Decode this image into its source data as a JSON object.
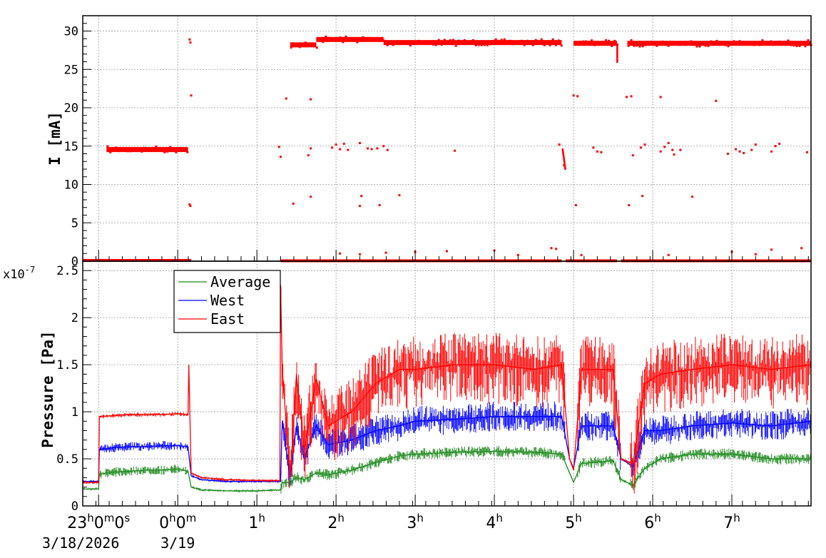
{
  "chart_data": [
    {
      "type": "scatter",
      "panel": "top",
      "title": "",
      "ylabel": "I [mA]",
      "xlabel": "",
      "ylim": [
        0,
        32
      ],
      "yticks": [
        0,
        5,
        10,
        15,
        20,
        25,
        30
      ],
      "xlim_hours": [
        -1.2,
        8.0
      ],
      "grid": true,
      "series": [
        {
          "color": "#ff0000",
          "segments": [
            {
              "x": [
                -1.2,
                0.17
              ],
              "y": 0.05
            },
            {
              "x": [
                -0.9,
                0.13
              ],
              "y": 14.55
            },
            {
              "x": [
                1.42,
                1.75
              ],
              "y": 28.2
            },
            {
              "x": [
                1.75,
                2.6
              ],
              "y": 28.9
            },
            {
              "x": [
                2.6,
                4.85
              ],
              "y": 28.5
            },
            {
              "x": [
                5.0,
                5.55
              ],
              "y": 28.4
            },
            {
              "x": [
                5.68,
                8.0
              ],
              "y": 28.4
            }
          ],
          "points": [
            [
              0.15,
              28.9
            ],
            [
              0.16,
              28.5
            ],
            [
              0.17,
              21.6
            ],
            [
              0.15,
              7.4
            ],
            [
              0.16,
              7.2
            ],
            [
              1.37,
              21.2
            ],
            [
              1.28,
              14.9
            ],
            [
              1.3,
              13.6
            ],
            [
              1.46,
              7.5
            ],
            [
              1.68,
              21.1
            ],
            [
              1.68,
              14.7
            ],
            [
              1.65,
              13.8
            ],
            [
              1.68,
              8.4
            ],
            [
              1.95,
              14.8
            ],
            [
              2.0,
              15.2
            ],
            [
              2.05,
              14.6
            ],
            [
              2.1,
              15.3
            ],
            [
              2.15,
              14.5
            ],
            [
              2.3,
              15.4
            ],
            [
              2.4,
              14.7
            ],
            [
              2.45,
              14.6
            ],
            [
              2.52,
              14.7
            ],
            [
              2.6,
              15.0
            ],
            [
              2.65,
              14.5
            ],
            [
              2.32,
              8.5
            ],
            [
              2.3,
              7.2
            ],
            [
              2.55,
              7.3
            ],
            [
              2.8,
              8.6
            ],
            [
              3.5,
              14.4
            ],
            [
              4.82,
              15.2
            ],
            [
              4.88,
              12.5
            ],
            [
              5.0,
              21.6
            ],
            [
              5.05,
              21.5
            ],
            [
              5.03,
              7.3
            ],
            [
              5.25,
              14.8
            ],
            [
              5.3,
              14.3
            ],
            [
              5.35,
              14.2
            ],
            [
              5.67,
              21.4
            ],
            [
              5.73,
              21.5
            ],
            [
              5.7,
              7.3
            ],
            [
              5.75,
              13.8
            ],
            [
              5.85,
              14.8
            ],
            [
              5.9,
              15.2
            ],
            [
              5.87,
              8.5
            ],
            [
              6.1,
              21.4
            ],
            [
              6.1,
              14.3
            ],
            [
              6.15,
              14.9
            ],
            [
              6.2,
              15.4
            ],
            [
              6.25,
              14.5
            ],
            [
              6.27,
              13.9
            ],
            [
              6.35,
              14.5
            ],
            [
              6.5,
              8.4
            ],
            [
              6.8,
              20.9
            ],
            [
              6.95,
              14.0
            ],
            [
              7.05,
              14.6
            ],
            [
              7.1,
              14.3
            ],
            [
              7.15,
              14.1
            ],
            [
              7.25,
              14.5
            ],
            [
              7.3,
              15.2
            ],
            [
              7.5,
              14.3
            ],
            [
              7.55,
              15.0
            ],
            [
              7.6,
              15.3
            ],
            [
              7.95,
              14.2
            ],
            [
              2.05,
              1.0
            ],
            [
              2.3,
              0.9
            ],
            [
              2.63,
              1.1
            ],
            [
              3.0,
              1.2
            ],
            [
              3.4,
              1.3
            ],
            [
              4.0,
              1.4
            ],
            [
              4.3,
              0.8
            ],
            [
              4.72,
              1.7
            ],
            [
              4.78,
              1.6
            ],
            [
              5.1,
              0.8
            ],
            [
              6.2,
              0.8
            ],
            [
              7.0,
              1.2
            ],
            [
              7.3,
              0.9
            ],
            [
              7.5,
              1.5
            ],
            [
              7.88,
              1.7
            ]
          ]
        }
      ]
    },
    {
      "type": "line",
      "panel": "bottom",
      "title": "",
      "ylabel": "Pressure [Pa]",
      "xlabel": "",
      "y_multiplier": "x10",
      "y_multiplier_exp": "-7",
      "ylim": [
        0,
        2.6
      ],
      "yticks": [
        "0",
        "0.5",
        "1",
        "1.5",
        "2",
        "2.5"
      ],
      "yticks_values": [
        0,
        0.5,
        1,
        1.5,
        2,
        2.5
      ],
      "grid": true,
      "legend_position": "top-left",
      "series": [
        {
          "name": "Average",
          "color": "#228b22",
          "x": [
            -1.2,
            -1.0,
            -0.99,
            -0.8,
            -0.6,
            -0.4,
            -0.2,
            0.0,
            0.13,
            0.17,
            0.3,
            0.6,
            1.0,
            1.3,
            1.32,
            1.42,
            1.5,
            1.6,
            1.75,
            1.9,
            2.2,
            2.5,
            2.8,
            3.0,
            3.5,
            4.0,
            4.5,
            4.85,
            4.95,
            5.0,
            5.1,
            5.5,
            5.6,
            5.75,
            5.9,
            6.1,
            6.5,
            7.0,
            7.5,
            8.0
          ],
          "y": [
            0.18,
            0.18,
            0.34,
            0.36,
            0.37,
            0.38,
            0.38,
            0.39,
            0.37,
            0.2,
            0.17,
            0.16,
            0.16,
            0.17,
            0.25,
            0.25,
            0.3,
            0.28,
            0.35,
            0.33,
            0.38,
            0.46,
            0.53,
            0.55,
            0.57,
            0.58,
            0.57,
            0.55,
            0.35,
            0.25,
            0.45,
            0.48,
            0.28,
            0.22,
            0.4,
            0.5,
            0.55,
            0.55,
            0.5,
            0.5
          ]
        },
        {
          "name": "West",
          "color": "#0000ff",
          "x": [
            -1.2,
            -1.0,
            -0.99,
            -0.8,
            -0.6,
            -0.4,
            -0.2,
            0.0,
            0.13,
            0.17,
            0.3,
            0.6,
            1.0,
            1.3,
            1.32,
            1.42,
            1.5,
            1.6,
            1.75,
            1.9,
            2.2,
            2.5,
            2.8,
            3.0,
            3.5,
            4.0,
            4.5,
            4.85,
            4.95,
            5.0,
            5.1,
            5.5,
            5.6,
            5.75,
            5.9,
            6.1,
            6.5,
            7.0,
            7.5,
            8.0
          ],
          "y": [
            0.26,
            0.26,
            0.6,
            0.62,
            0.63,
            0.63,
            0.64,
            0.64,
            0.63,
            0.32,
            0.28,
            0.26,
            0.26,
            0.26,
            0.9,
            0.3,
            0.85,
            0.5,
            0.85,
            0.65,
            0.7,
            0.8,
            0.85,
            0.9,
            0.92,
            0.95,
            0.95,
            0.95,
            0.5,
            0.4,
            0.85,
            0.85,
            0.5,
            0.42,
            0.8,
            0.8,
            0.85,
            0.88,
            0.85,
            0.9
          ]
        },
        {
          "name": "East",
          "color": "#ff0000",
          "x": [
            -1.2,
            -1.0,
            -0.99,
            -0.8,
            -0.6,
            -0.4,
            -0.2,
            0.0,
            0.13,
            0.14,
            0.17,
            0.3,
            0.6,
            1.0,
            1.29,
            1.3,
            1.32,
            1.42,
            1.5,
            1.6,
            1.75,
            1.9,
            2.2,
            2.5,
            2.8,
            3.0,
            3.5,
            4.0,
            4.5,
            4.85,
            4.95,
            5.0,
            5.1,
            5.5,
            5.6,
            5.75,
            5.9,
            6.1,
            6.5,
            7.0,
            7.5,
            8.0
          ],
          "y": [
            0.25,
            0.25,
            0.95,
            0.96,
            0.97,
            0.97,
            0.97,
            0.98,
            0.97,
            1.5,
            0.35,
            0.3,
            0.28,
            0.27,
            0.27,
            2.35,
            1.45,
            0.3,
            1.4,
            0.6,
            1.35,
            0.85,
            1.0,
            1.3,
            1.45,
            1.45,
            1.5,
            1.5,
            1.45,
            1.5,
            0.5,
            0.38,
            1.45,
            1.45,
            0.5,
            0.45,
            1.3,
            1.4,
            1.45,
            1.5,
            1.45,
            1.5
          ]
        }
      ]
    }
  ],
  "x_axis": {
    "ticks": [
      {
        "hours": -1.0,
        "main": "23",
        "sup1": "h",
        "mid": "0",
        "sup2": "m",
        "end": "0",
        "sup3": "s"
      },
      {
        "hours": 0.0,
        "main": "0",
        "sup1": "h",
        "mid": "0",
        "sup2": "m",
        "end": "",
        "sup3": ""
      },
      {
        "hours": 1.0,
        "main": "1",
        "sup1": "h",
        "mid": "",
        "sup2": "",
        "end": "",
        "sup3": ""
      },
      {
        "hours": 2.0,
        "main": "2",
        "sup1": "h",
        "mid": "",
        "sup2": "",
        "end": "",
        "sup3": ""
      },
      {
        "hours": 3.0,
        "main": "3",
        "sup1": "h",
        "mid": "",
        "sup2": "",
        "end": "",
        "sup3": ""
      },
      {
        "hours": 4.0,
        "main": "4",
        "sup1": "h",
        "mid": "",
        "sup2": "",
        "end": "",
        "sup3": ""
      },
      {
        "hours": 5.0,
        "main": "5",
        "sup1": "h",
        "mid": "",
        "sup2": "",
        "end": "",
        "sup3": ""
      },
      {
        "hours": 6.0,
        "main": "6",
        "sup1": "h",
        "mid": "",
        "sup2": "",
        "end": "",
        "sup3": ""
      },
      {
        "hours": 7.0,
        "main": "7",
        "sup1": "h",
        "mid": "",
        "sup2": "",
        "end": "",
        "sup3": ""
      }
    ],
    "dates": [
      {
        "hours": -1.0,
        "text": "3/18/2026"
      },
      {
        "hours": 0.0,
        "text": "3/19"
      }
    ]
  }
}
